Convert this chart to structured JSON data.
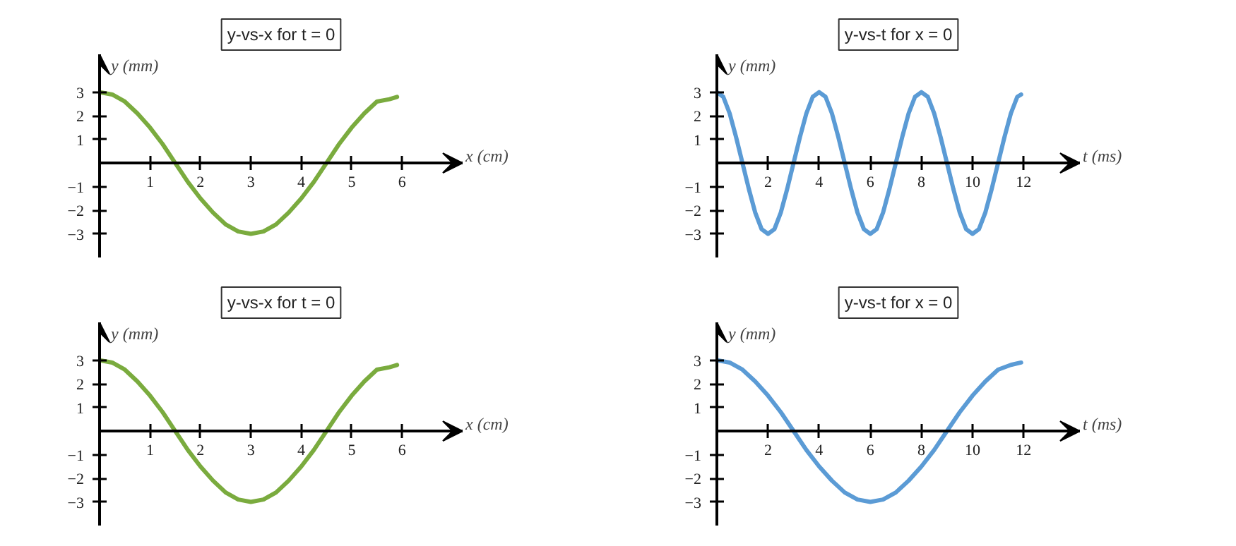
{
  "chart_data": [
    {
      "type": "line",
      "title": "y-vs-x for t = 0",
      "xlabel": "x (cm)",
      "ylabel": "y (mm)",
      "grid": false,
      "x": [
        0,
        0.25,
        0.5,
        0.75,
        1,
        1.25,
        1.5,
        1.75,
        2,
        2.25,
        2.5,
        2.75,
        3,
        3.25,
        3.5,
        3.75,
        4,
        4.25,
        4.5,
        4.75,
        5,
        5.25,
        5.5,
        5.75,
        5.9
      ],
      "series": [
        {
          "color": "#7aab3e",
          "values": [
            3,
            2.9,
            2.6,
            2.1,
            1.5,
            0.8,
            0,
            -0.8,
            -1.5,
            -2.1,
            -2.6,
            -2.9,
            -3,
            -2.9,
            -2.6,
            -2.1,
            -1.5,
            -0.8,
            0,
            0.8,
            1.5,
            2.1,
            2.6,
            2.7,
            2.8
          ]
        }
      ],
      "xlim": [
        0,
        7.2
      ],
      "ylim": [
        -4,
        4.6
      ],
      "xticks": [
        1,
        2,
        3,
        4,
        5,
        6
      ],
      "yticks": [
        -3,
        -2,
        -1,
        1,
        2,
        3
      ]
    },
    {
      "type": "line",
      "title": "y-vs-t for x = 0",
      "xlabel": "t (ms)",
      "ylabel": "y (mm)",
      "grid": false,
      "x": [
        0,
        0.25,
        0.5,
        0.75,
        1,
        1.25,
        1.5,
        1.75,
        2,
        2.25,
        2.5,
        2.75,
        3,
        3.25,
        3.5,
        3.75,
        4,
        4.25,
        4.5,
        4.75,
        5,
        5.25,
        5.5,
        5.75,
        6,
        6.25,
        6.5,
        6.75,
        7,
        7.25,
        7.5,
        7.75,
        8,
        8.25,
        8.5,
        8.75,
        9,
        9.25,
        9.5,
        9.75,
        10,
        10.25,
        10.5,
        10.75,
        11,
        11.25,
        11.5,
        11.75,
        11.9
      ],
      "series": [
        {
          "color": "#5b9bd5",
          "values": [
            3,
            2.8,
            2.1,
            1.1,
            0,
            -1.1,
            -2.1,
            -2.8,
            -3,
            -2.8,
            -2.1,
            -1.1,
            0,
            1.1,
            2.1,
            2.8,
            3,
            2.8,
            2.1,
            1.1,
            0,
            -1.1,
            -2.1,
            -2.8,
            -3,
            -2.8,
            -2.1,
            -1.1,
            0,
            1.1,
            2.1,
            2.8,
            3,
            2.8,
            2.1,
            1.1,
            0,
            -1.1,
            -2.1,
            -2.8,
            -3,
            -2.8,
            -2.1,
            -1.1,
            0,
            1.1,
            2.1,
            2.8,
            2.9
          ]
        }
      ],
      "xlim": [
        0,
        14.2
      ],
      "ylim": [
        -4,
        4.6
      ],
      "xticks": [
        2,
        4,
        6,
        8,
        10,
        12
      ],
      "yticks": [
        -3,
        -2,
        -1,
        1,
        2,
        3
      ]
    },
    {
      "type": "line",
      "title": "y-vs-x for t = 0",
      "xlabel": "x (cm)",
      "ylabel": "y (mm)",
      "grid": false,
      "x": [
        0,
        0.25,
        0.5,
        0.75,
        1,
        1.25,
        1.5,
        1.75,
        2,
        2.25,
        2.5,
        2.75,
        3,
        3.25,
        3.5,
        3.75,
        4,
        4.25,
        4.5,
        4.75,
        5,
        5.25,
        5.5,
        5.75,
        5.9
      ],
      "series": [
        {
          "color": "#7aab3e",
          "values": [
            3,
            2.9,
            2.6,
            2.1,
            1.5,
            0.8,
            0,
            -0.8,
            -1.5,
            -2.1,
            -2.6,
            -2.9,
            -3,
            -2.9,
            -2.6,
            -2.1,
            -1.5,
            -0.8,
            0,
            0.8,
            1.5,
            2.1,
            2.6,
            2.7,
            2.8
          ]
        }
      ],
      "xlim": [
        0,
        7.2
      ],
      "ylim": [
        -4,
        4.6
      ],
      "xticks": [
        1,
        2,
        3,
        4,
        5,
        6
      ],
      "yticks": [
        -3,
        -2,
        -1,
        1,
        2,
        3
      ]
    },
    {
      "type": "line",
      "title": "y-vs-t for x = 0",
      "xlabel": "t (ms)",
      "ylabel": "y (mm)",
      "grid": false,
      "x": [
        0,
        0.5,
        1,
        1.5,
        2,
        2.5,
        3,
        3.5,
        4,
        4.5,
        5,
        5.5,
        6,
        6.5,
        7,
        7.5,
        8,
        8.5,
        9,
        9.5,
        10,
        10.5,
        11,
        11.5,
        11.9
      ],
      "series": [
        {
          "color": "#5b9bd5",
          "values": [
            3,
            2.9,
            2.6,
            2.1,
            1.5,
            0.8,
            0,
            -0.8,
            -1.5,
            -2.1,
            -2.6,
            -2.9,
            -3,
            -2.9,
            -2.6,
            -2.1,
            -1.5,
            -0.8,
            0,
            0.8,
            1.5,
            2.1,
            2.6,
            2.8,
            2.9
          ]
        }
      ],
      "xlim": [
        0,
        14.2
      ],
      "ylim": [
        -4,
        4.6
      ],
      "xticks": [
        2,
        4,
        6,
        8,
        10,
        12
      ],
      "yticks": [
        -3,
        -2,
        -1,
        1,
        2,
        3
      ]
    }
  ]
}
